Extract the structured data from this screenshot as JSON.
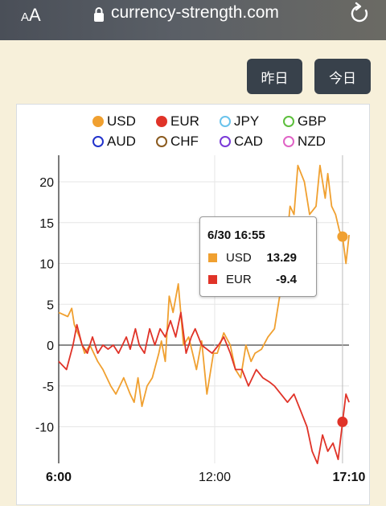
{
  "browser": {
    "text_size_label": "AA",
    "url": "currency-strength.com"
  },
  "buttons": {
    "yesterday": "昨日",
    "today": "今日"
  },
  "colors": {
    "USD": "#f0a030",
    "EUR": "#e03328",
    "JPY": "#6ac3ec",
    "GBP": "#5cbf3c",
    "AUD": "#2233cc",
    "CHF": "#8a5a1e",
    "CAD": "#7a3ad8",
    "NZD": "#e063c6"
  },
  "legend": [
    "USD",
    "EUR",
    "JPY",
    "GBP",
    "AUD",
    "CHF",
    "CAD",
    "NZD"
  ],
  "tooltip": {
    "title": "6/30 16:55",
    "rows": [
      {
        "name": "USD",
        "value": "13.29"
      },
      {
        "name": "EUR",
        "value": "-9.4"
      }
    ]
  },
  "chart_data": {
    "type": "line",
    "x_ticks": [
      {
        "label": "6:00",
        "t": 0,
        "bold": true
      },
      {
        "label": "12:00",
        "t": 6,
        "bold": false
      },
      {
        "label": "17:10",
        "t": 11.1667,
        "bold": true
      }
    ],
    "y_ticks": [
      20,
      15,
      10,
      5,
      0,
      -5,
      -10
    ],
    "ylim": [
      -14.5,
      23
    ],
    "xlim": [
      0,
      11.1667
    ],
    "grid": true,
    "crosshair_t": 10.9167,
    "series": [
      {
        "name": "USD",
        "x": [
          0,
          0.35,
          0.5,
          0.6,
          0.8,
          1.0,
          1.2,
          1.5,
          1.7,
          2.0,
          2.2,
          2.5,
          2.75,
          2.9,
          3.05,
          3.2,
          3.4,
          3.6,
          3.85,
          3.95,
          4.1,
          4.25,
          4.4,
          4.6,
          4.8,
          5.0,
          5.15,
          5.3,
          5.5,
          5.7,
          5.95,
          6.1,
          6.35,
          6.6,
          6.8,
          7.0,
          7.2,
          7.4,
          7.55,
          7.8,
          8.05,
          8.3,
          8.55,
          8.75,
          8.9,
          9.05,
          9.2,
          9.45,
          9.65,
          9.9,
          10.05,
          10.25,
          10.35,
          10.5,
          10.65,
          10.8,
          10.92,
          11.05,
          11.17
        ],
        "y": [
          4,
          3.5,
          4.5,
          2.5,
          1,
          -1,
          0,
          -2,
          -3,
          -5,
          -6,
          -4,
          -6,
          -7,
          -4,
          -7.5,
          -5,
          -4,
          -1,
          0.5,
          -2,
          6,
          4,
          7.5,
          0,
          1,
          -1,
          -3,
          0.5,
          -6,
          -1,
          -1,
          1.5,
          0,
          -3,
          -4,
          0,
          -2,
          -1,
          -0.5,
          1,
          2,
          7,
          12,
          17,
          16,
          22,
          20,
          16,
          17,
          22,
          18,
          21,
          17,
          16,
          14,
          13.3,
          10,
          13.5
        ]
      },
      {
        "name": "EUR",
        "x": [
          0,
          0.3,
          0.55,
          0.7,
          0.9,
          1.1,
          1.3,
          1.5,
          1.7,
          1.9,
          2.1,
          2.3,
          2.6,
          2.75,
          2.95,
          3.1,
          3.3,
          3.5,
          3.7,
          3.9,
          4.1,
          4.3,
          4.5,
          4.7,
          4.9,
          5.1,
          5.25,
          5.5,
          5.7,
          5.9,
          6.15,
          6.35,
          6.6,
          6.8,
          7.05,
          7.3,
          7.6,
          7.85,
          8.1,
          8.3,
          8.55,
          8.8,
          9.05,
          9.3,
          9.55,
          9.75,
          9.95,
          10.15,
          10.35,
          10.55,
          10.75,
          10.92,
          11.05,
          11.17
        ],
        "y": [
          -2,
          -3,
          0,
          2.5,
          0,
          -1,
          1,
          -1,
          0,
          -0.5,
          0,
          -1,
          1,
          -0.5,
          2,
          0,
          -1,
          2,
          0,
          2,
          1,
          3,
          1,
          4,
          -1,
          1,
          2,
          0,
          -0.5,
          -1,
          0,
          1,
          -1,
          -3,
          -3,
          -5,
          -3,
          -4,
          -4.5,
          -5,
          -6,
          -7,
          -6,
          -8,
          -10,
          -13,
          -14.5,
          -11,
          -13,
          -12,
          -14,
          -9.4,
          -6,
          -7
        ]
      }
    ]
  }
}
